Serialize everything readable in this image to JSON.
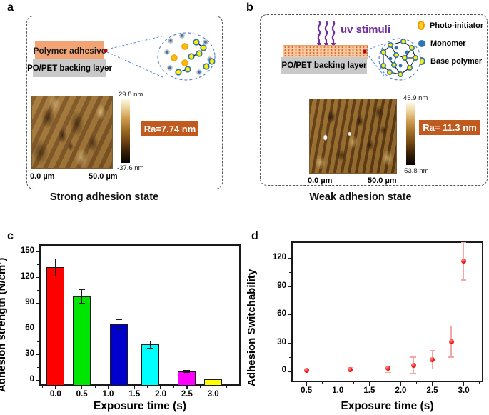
{
  "colors": {
    "accent_orange": "#c05a1f",
    "uv_purple": "#7030a0",
    "monomer_blue": "#2e75b6",
    "photo_initiator_yellow": "#ffc000",
    "base_polymer_yellow": "#ffee00"
  },
  "panel_a": {
    "label": "a",
    "caption": "Strong adhesion state",
    "schematic": {
      "adhesive_label": "Polymer adhesive",
      "backing_label": "PO/PET backing layer"
    },
    "afm": {
      "scale_max": "29.8 nm",
      "scale_min": "-37.6 nm",
      "ra_label": "Ra=7.74 nm",
      "x_start": "0.0 µm",
      "x_end": "50.0 µm"
    }
  },
  "panel_b": {
    "label": "b",
    "caption": "Weak adhesion state",
    "uv_label": "uv stimuli",
    "legend": [
      {
        "label": "Photo-initiator"
      },
      {
        "label": "Monomer"
      },
      {
        "label": "Base polymer"
      }
    ],
    "schematic": {
      "backing_label": "PO/PET backing layer"
    },
    "afm": {
      "scale_max": "45.9 nm",
      "scale_min": "-53.8 nm",
      "ra_label": "Ra= 11.3 nm",
      "x_start": "0.0 µm",
      "x_end": "50.0 µm"
    }
  },
  "panel_c": {
    "label": "c"
  },
  "panel_d": {
    "label": "d"
  },
  "chart_data": [
    {
      "panel": "c",
      "type": "bar",
      "title": "",
      "xlabel": "Exposure time (s)",
      "ylabel": "Adhesion strength (N/cm²)",
      "x": [
        0.0,
        0.5,
        1.2,
        1.8,
        2.5,
        3.0
      ],
      "values": [
        132,
        98,
        66,
        42,
        10.5,
        1.5
      ],
      "errors": [
        10,
        8,
        5,
        4,
        1.2,
        0.6
      ],
      "bar_colors": [
        "#ff0000",
        "#00e600",
        "#0000cd",
        "#00ffff",
        "#ff00ff",
        "#ffff00"
      ],
      "bar_width": 0.34,
      "xlim": [
        -0.31,
        3.52
      ],
      "ylim": [
        -6,
        159
      ],
      "x_ticks": [
        0,
        0.5,
        1,
        1.5,
        2,
        2.5,
        3
      ],
      "x_tick_labels": [
        "0.0",
        "0.5",
        "1.0",
        "1.5",
        "2.0",
        "2.5",
        "3.0"
      ],
      "y_ticks": [
        0,
        30,
        60,
        90,
        120,
        150
      ],
      "grid": false,
      "legend_position": "none"
    },
    {
      "panel": "d",
      "type": "scatter",
      "title": "",
      "xlabel": "Exposure time (s)",
      "ylabel": "Adhesion Switchability",
      "x": [
        0.5,
        1.2,
        1.8,
        2.2,
        2.5,
        2.8,
        3.0
      ],
      "values": [
        1.2,
        2,
        3.5,
        6.5,
        12.5,
        31.5,
        117
      ],
      "errors": [
        1.2,
        2,
        4.5,
        8.5,
        10,
        16.5,
        20
      ],
      "marker_color": "#e8151e",
      "error_color": "#f4a7a7",
      "xlim": [
        0.26,
        3.31
      ],
      "ylim": [
        -11.5,
        138
      ],
      "x_ticks": [
        0.5,
        1,
        1.5,
        2,
        2.5,
        3
      ],
      "x_tick_labels": [
        "0.5",
        "1.0",
        "1.5",
        "2.0",
        "2.5",
        "3.0"
      ],
      "y_ticks": [
        0,
        30,
        60,
        90,
        120
      ],
      "grid": false,
      "legend_position": "none"
    }
  ]
}
